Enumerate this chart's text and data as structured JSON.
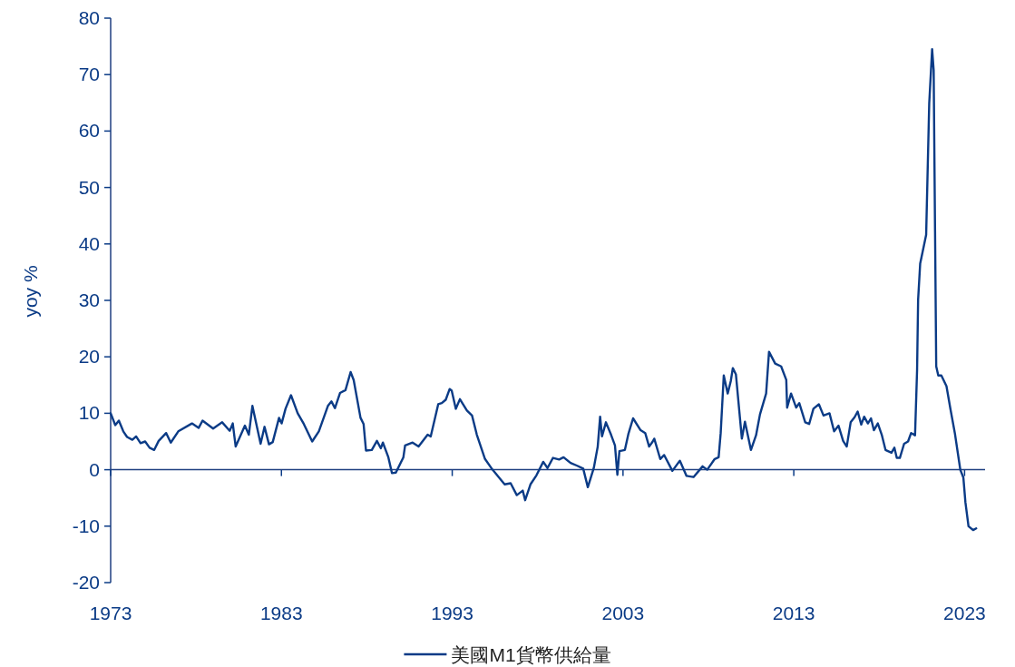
{
  "chart_data": {
    "type": "line",
    "ylabel": "yoy %",
    "xlim": [
      1973,
      2024.2
    ],
    "xticks": [
      1973,
      1983,
      1993,
      2003,
      2013,
      2023
    ],
    "ylim": [
      -20,
      80
    ],
    "yticks": [
      -20,
      -10,
      0,
      10,
      20,
      30,
      40,
      50,
      60,
      70,
      80
    ],
    "legend": "bottom",
    "ref_lines": [
      {
        "axis": "y",
        "value": 0
      }
    ],
    "line_style": "solid",
    "marker": "none",
    "x": [
      1973.0,
      1973.27,
      1973.48,
      1973.74,
      1973.96,
      1974.27,
      1974.49,
      1974.75,
      1975.02,
      1975.28,
      1975.55,
      1975.81,
      1976.25,
      1976.52,
      1976.96,
      1977.76,
      1978.15,
      1978.38,
      1979.0,
      1979.53,
      1979.97,
      1980.15,
      1980.32,
      1980.86,
      1981.09,
      1981.3,
      1981.78,
      1982.01,
      1982.27,
      1982.49,
      1982.86,
      1983.01,
      1983.24,
      1983.56,
      1983.95,
      1984.31,
      1984.8,
      1985.19,
      1985.72,
      1985.93,
      1986.13,
      1986.43,
      1986.75,
      1987.05,
      1987.23,
      1987.63,
      1987.81,
      1987.95,
      1988.29,
      1988.59,
      1988.82,
      1988.94,
      1989.26,
      1989.47,
      1989.7,
      1990.14,
      1990.24,
      1990.68,
      1991.03,
      1991.56,
      1991.74,
      1992.18,
      1992.39,
      1992.62,
      1992.85,
      1992.97,
      1993.21,
      1993.45,
      1993.86,
      1994.16,
      1994.44,
      1994.92,
      1995.36,
      1996.07,
      1996.42,
      1996.78,
      1997.13,
      1997.27,
      1997.58,
      1997.93,
      1998.33,
      1998.58,
      1998.9,
      1999.26,
      1999.52,
      1999.93,
      2000.32,
      2000.67,
      2000.94,
      2001.29,
      2001.52,
      2001.66,
      2001.77,
      2002.0,
      2002.3,
      2002.53,
      2002.67,
      2002.79,
      2003.11,
      2003.32,
      2003.59,
      2004.03,
      2004.3,
      2004.53,
      2004.74,
      2004.83,
      2005.18,
      2005.41,
      2005.89,
      2006.33,
      2006.72,
      2007.13,
      2007.66,
      2007.93,
      2008.37,
      2008.6,
      2008.72,
      2008.9,
      2009.13,
      2009.31,
      2009.43,
      2009.61,
      2009.96,
      2010.14,
      2010.49,
      2010.79,
      2011.02,
      2011.38,
      2011.55,
      2011.91,
      2012.26,
      2012.56,
      2012.61,
      2012.84,
      2013.14,
      2013.32,
      2013.67,
      2013.9,
      2014.15,
      2014.47,
      2014.74,
      2015.09,
      2015.36,
      2015.62,
      2015.89,
      2016.1,
      2016.33,
      2016.56,
      2016.74,
      2016.95,
      2017.12,
      2017.34,
      2017.52,
      2017.69,
      2017.92,
      2018.15,
      2018.37,
      2018.72,
      2018.89,
      2019.03,
      2019.21,
      2019.46,
      2019.69,
      2019.87,
      2020.1,
      2020.22,
      2020.28,
      2020.4,
      2020.75,
      2020.93,
      2021.1,
      2021.19,
      2021.34,
      2021.46,
      2021.64,
      2021.94,
      2022.17,
      2022.43,
      2022.75,
      2022.93,
      2023.05,
      2023.23,
      2023.5,
      2023.68
    ],
    "series": [
      {
        "name": "美國M1貨幣供給量",
        "color": "#0b3b86",
        "values": [
          10.0,
          7.9,
          8.7,
          6.8,
          5.8,
          5.3,
          5.9,
          4.7,
          5.0,
          3.9,
          3.5,
          5.1,
          6.5,
          4.8,
          6.8,
          8.2,
          7.4,
          8.7,
          7.3,
          8.4,
          6.9,
          8.2,
          4.1,
          7.8,
          6.2,
          11.3,
          4.6,
          7.6,
          4.5,
          4.9,
          9.2,
          8.2,
          10.8,
          13.2,
          10.0,
          8.1,
          5.0,
          6.8,
          11.3,
          12.1,
          10.9,
          13.6,
          14.1,
          17.3,
          15.9,
          9.2,
          8.1,
          3.4,
          3.5,
          5.1,
          3.8,
          4.8,
          2.2,
          -0.6,
          -0.5,
          2.2,
          4.3,
          4.8,
          4.1,
          6.2,
          5.9,
          11.6,
          11.8,
          12.4,
          14.3,
          14.0,
          10.8,
          12.5,
          10.5,
          9.6,
          6.2,
          1.9,
          0.0,
          -2.6,
          -2.4,
          -4.5,
          -3.7,
          -5.4,
          -2.6,
          -1.0,
          1.4,
          0.3,
          2.1,
          1.8,
          2.2,
          1.2,
          0.7,
          0.2,
          -3.1,
          0.3,
          4.1,
          9.4,
          5.9,
          8.4,
          6.2,
          4.3,
          -0.9,
          3.3,
          3.5,
          6.4,
          9.1,
          7.0,
          6.5,
          4.1,
          5.0,
          5.5,
          1.9,
          2.6,
          -0.2,
          1.6,
          -1.1,
          -1.3,
          0.6,
          0.0,
          1.9,
          2.2,
          6.5,
          16.7,
          13.5,
          15.7,
          18.0,
          16.9,
          5.5,
          8.5,
          3.5,
          6.1,
          9.8,
          13.5,
          20.9,
          18.8,
          18.3,
          15.9,
          11.0,
          13.5,
          11.0,
          11.8,
          8.4,
          8.1,
          10.8,
          11.6,
          9.6,
          10.0,
          6.8,
          7.8,
          5.1,
          4.1,
          8.4,
          9.3,
          10.3,
          8.0,
          9.4,
          8.2,
          9.1,
          7.0,
          8.2,
          6.2,
          3.5,
          3.0,
          3.9,
          2.1,
          2.1,
          4.6,
          5.0,
          6.5,
          6.1,
          17.7,
          30.1,
          36.5,
          41.6,
          64.9,
          74.5,
          70.8,
          18.3,
          16.7,
          16.7,
          14.8,
          10.8,
          6.5,
          0.0,
          -1.4,
          -5.8,
          -10.0,
          -10.7,
          -10.4
        ]
      }
    ]
  }
}
